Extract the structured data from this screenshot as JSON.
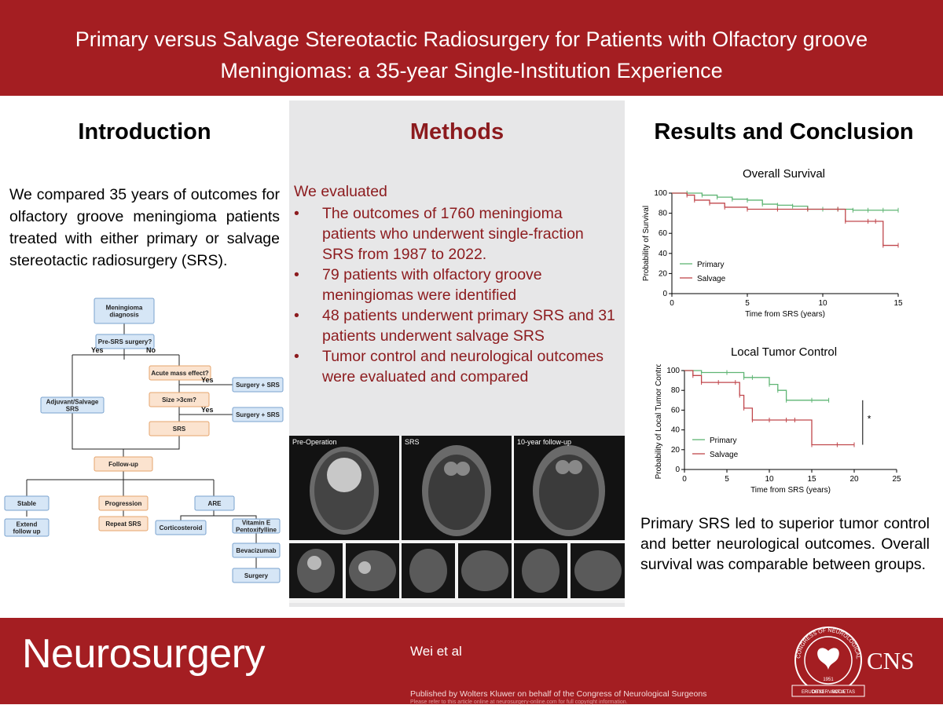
{
  "header": {
    "title_line1": "Primary versus Salvage Stereotactic Radiosurgery for Patients with Olfactory groove",
    "title_line2": "Meningiomas: a 35-year Single-Institution Experience"
  },
  "intro": {
    "title": "Introduction",
    "text": "We compared 35 years of outcomes for olfactory groove meningioma patients treated with either primary or salvage stereotactic radiosurgery (SRS)."
  },
  "flowchart": {
    "nodes": {
      "diag": [
        "Meningioma",
        "diagnosis"
      ],
      "pre": "Pre-SRS surgery?",
      "acute": "Acute mass effect?",
      "size": "Size >3cm?",
      "surg1": "Surgery + SRS",
      "surg2": "Surgery + SRS",
      "adj": [
        "Adjuvant/Salvage",
        "SRS"
      ],
      "srs": "SRS",
      "follow": "Follow-up",
      "stable": "Stable",
      "prog": "Progression",
      "are": "ARE",
      "extend": [
        "Extend",
        "follow up"
      ],
      "repeat": "Repeat SRS",
      "cortico": "Corticosteroid",
      "vite": [
        "Vitamin E",
        "Pentoxifylline"
      ],
      "beva": "Bevacizumab",
      "surgery": "Surgery"
    },
    "labels": {
      "yes1": "Yes",
      "no1": "No",
      "yes2": "Yes",
      "yes3": "Yes"
    },
    "colors": {
      "blue": "#d6e6f6",
      "blue_border": "#7aa3cf",
      "orange": "#fbe3cf",
      "orange_border": "#e6a46c"
    }
  },
  "methods": {
    "title": "Methods",
    "lead": "We evaluated",
    "bullet": "•",
    "items": [
      "The outcomes of 1760 meningioma patients who underwent single-fraction SRS from 1987 to 2022.",
      "79 patients with olfactory groove meningiomas were identified",
      "48 patients underwent primary SRS and 31 patients underwent salvage SRS",
      "Tumor control and neurological outcomes were evaluated and compared"
    ],
    "images": {
      "labels": [
        "Pre-Operation",
        "SRS",
        "10-year follow-up"
      ]
    }
  },
  "results": {
    "title": "Results and Conclusion",
    "text": "Primary SRS led to superior tumor control and better neurological outcomes. Overall survival was comparable between groups."
  },
  "chart_data": [
    {
      "type": "line",
      "title": "Overall Survival",
      "xlabel": "Time from SRS (years)",
      "ylabel": "Probability of Survival",
      "xlim": [
        0,
        15
      ],
      "ylim": [
        0,
        100
      ],
      "xticks": [
        0,
        5,
        10,
        15
      ],
      "yticks": [
        0,
        20,
        40,
        60,
        80,
        100
      ],
      "series": [
        {
          "name": "Primary",
          "color": "#5fb574",
          "x": [
            0,
            1,
            2,
            3,
            4,
            5,
            6,
            7,
            8,
            9,
            10,
            11,
            12,
            13,
            14,
            15
          ],
          "y": [
            100,
            100,
            98,
            96,
            94,
            93,
            89,
            88,
            87,
            84,
            84,
            84,
            83,
            83,
            83,
            83
          ]
        },
        {
          "name": "Salvage",
          "color": "#c0474c",
          "x": [
            0,
            1,
            1.5,
            2.5,
            3.5,
            5,
            7,
            9,
            11,
            11.5,
            13,
            13.5,
            14,
            15
          ],
          "y": [
            100,
            98,
            93,
            90,
            86,
            84,
            84,
            84,
            84,
            72,
            72,
            72,
            48,
            48
          ]
        }
      ]
    },
    {
      "type": "line",
      "title": "Local Tumor Control",
      "xlabel": "Time from SRS (years)",
      "ylabel": "Probability of Local Tumor Control",
      "xlim": [
        0,
        25
      ],
      "ylim": [
        0,
        100
      ],
      "xticks": [
        0,
        5,
        10,
        15,
        20,
        25
      ],
      "yticks": [
        0,
        20,
        40,
        60,
        80,
        100
      ],
      "annotation": "*",
      "series": [
        {
          "name": "Primary",
          "color": "#5fb574",
          "x": [
            0,
            2,
            5,
            7,
            8,
            10,
            11,
            12,
            15,
            17
          ],
          "y": [
            100,
            98,
            98,
            93,
            93,
            86,
            80,
            70,
            70,
            70
          ]
        },
        {
          "name": "Salvage",
          "color": "#c0474c",
          "x": [
            0,
            1,
            2,
            4,
            6,
            6.5,
            7,
            8,
            10,
            12,
            13,
            15,
            18,
            20
          ],
          "y": [
            100,
            95,
            88,
            88,
            88,
            75,
            62,
            50,
            50,
            50,
            50,
            25,
            25,
            25
          ]
        }
      ]
    }
  ],
  "footer": {
    "brand": "Neurosurgery",
    "authors": "Wei et al",
    "publisher": "Published by Wolters Kluwer on behalf of the Congress of Neurological Surgeons",
    "copyright": "Please refer to this article online at neurosurgery-online.com for full copyright information.",
    "cns": "CNS",
    "seal_text": "CONGRESS OF NEUROLOGICAL SURGEONS",
    "seal_motto_left": "ERUDITIO",
    "seal_motto_center": "OBSERVANTIA",
    "seal_motto_right": "SOCIETAS",
    "seal_year": "1951"
  }
}
